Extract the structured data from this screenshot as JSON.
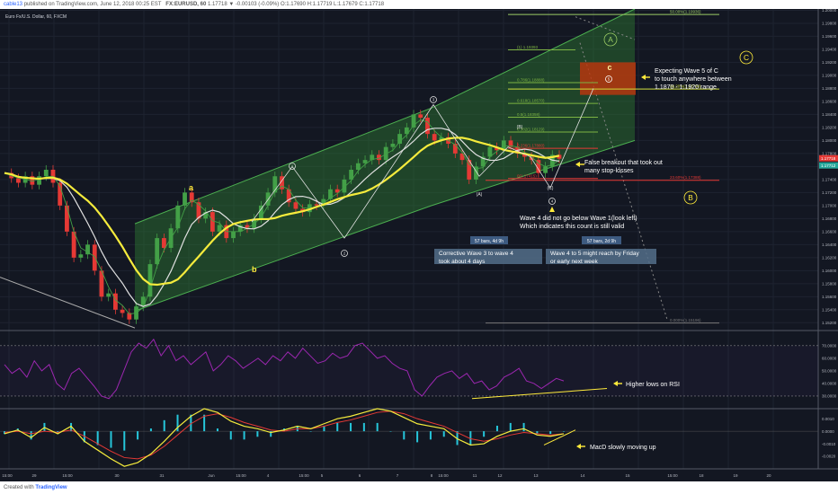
{
  "topbar": {
    "user": "cable13",
    "published": "published on TradingView.com, June 12, 2018 00:25 EST",
    "ticker": "FX:EURUSD, 60",
    "quote": "1.17718  ▼ -0.00103 (-0.09%)  O:1.17690  H:1.17719  L:1.17679  C:1.17718"
  },
  "legend": "Euro Fx/U.S. Dollar, 60, FXCM",
  "bottombar": {
    "created_with": "Created with",
    "brand": "TradingView"
  },
  "price_tag": {
    "value": "1.17718",
    "value2": "1.17712"
  },
  "colors": {
    "background": "#131722",
    "channel": "#2e7d32",
    "yellow_ma": "#f5eb3c",
    "white_ma": "#e0e0e0",
    "green_ma": "#43a047",
    "rsi": "#9c27b0",
    "macd": "#f5eb3c",
    "signal": "#e53935",
    "hist": "#26c6da",
    "annot": "#ffeb3b",
    "fib_red": "#e53935",
    "fib_green": "#7cb342"
  },
  "chart_data": [
    {
      "type": "candlestick",
      "title": "Euro Fx/U.S. Dollar, 60, FXCM",
      "ylim": [
        1.1508,
        1.2002
      ],
      "y_ticks": [
        "1.20000",
        "1.19800",
        "1.19600",
        "1.19400",
        "1.19200",
        "1.19000",
        "1.18800",
        "1.18600",
        "1.18400",
        "1.18200",
        "1.18000",
        "1.17800",
        "1.17600",
        "1.17400",
        "1.17200",
        "1.17000",
        "1.16800",
        "1.16600",
        "1.16400",
        "1.16200",
        "1.16000",
        "1.15800",
        "1.15600",
        "1.15400",
        "1.15200"
      ],
      "x_ticks": [
        "15:00",
        "29",
        "15:00",
        "30",
        "31",
        "Jun",
        "15:00",
        "4",
        "15:00",
        "5",
        "6",
        "7",
        "8",
        "15:00",
        "11",
        "12",
        "13",
        "14",
        "15",
        "15:00",
        "18",
        "19",
        "20"
      ],
      "price_path": [
        1.175,
        1.1742,
        1.1735,
        1.1745,
        1.1732,
        1.1745,
        1.1755,
        1.1735,
        1.17,
        1.166,
        1.162,
        1.1625,
        1.164,
        1.16,
        1.156,
        1.1565,
        1.154,
        1.1535,
        1.1525,
        1.1545,
        1.156,
        1.161,
        1.165,
        1.1635,
        1.1665,
        1.17,
        1.172,
        1.1705,
        1.168,
        1.169,
        1.166,
        1.167,
        1.165,
        1.166,
        1.167,
        1.1665,
        1.168,
        1.17,
        1.172,
        1.1745,
        1.1725,
        1.1705,
        1.1695,
        1.169,
        1.1702,
        1.17,
        1.171,
        1.1725,
        1.172,
        1.174,
        1.1755,
        1.1765,
        1.177,
        1.1778,
        1.177,
        1.179,
        1.1795,
        1.181,
        1.182,
        1.184,
        1.1835,
        1.181,
        1.18,
        1.1805,
        1.1795,
        1.178,
        1.177,
        1.174,
        1.176,
        1.1775,
        1.179,
        1.1785,
        1.18,
        1.179,
        1.178,
        1.1775,
        1.177,
        1.175,
        1.176,
        1.1778,
        1.1772
      ],
      "channel_upper": [
        [
          1.1672,
          150
        ],
        [
          1.185,
          480
        ],
        [
          1.2002,
          706
        ]
      ],
      "channel_lower": [
        [
          1.1538,
          150
        ],
        [
          1.17,
          480
        ],
        [
          1.18,
          706
        ]
      ],
      "fibonacci": [
        {
          "label": "50.00%(1.19936)",
          "value": 1.19936,
          "color": "green"
        },
        {
          "label": "(1) 1.19393",
          "value": 1.19393,
          "color": "green"
        },
        {
          "label": "0.786(1.18888)",
          "value": 1.18888,
          "color": "green"
        },
        {
          "label": "38.20%(1.18790)",
          "value": 1.1879,
          "color": "green"
        },
        {
          "label": "0.618(1.18570)",
          "value": 1.1857,
          "color": "green"
        },
        {
          "label": "0.5(1.18358)",
          "value": 1.18358,
          "color": "green"
        },
        {
          "label": "0.382(1.18129)",
          "value": 1.18129,
          "color": "green"
        },
        {
          "label": "0.236(1.17880)",
          "value": 1.1788,
          "color": "red"
        },
        {
          "label": "0(1.17415)",
          "value": 1.17415,
          "color": "red"
        },
        {
          "label": "23.60%(1.17388)",
          "value": 1.17388,
          "color": "red"
        },
        {
          "label": "0.000%(1.15196)",
          "value": 1.15196,
          "color": "gray"
        }
      ],
      "wave_labels": [
        "A",
        "B",
        "C",
        "a",
        "b",
        "c",
        "1",
        "2",
        "3",
        "4",
        "5",
        "(A)",
        "(B)",
        "(C)"
      ],
      "annotations": [
        "Expecting Wave 5 of C\nto touch anywhere between\n1.1870 - 1.1920 range",
        "False breakout that took out\nmany stop-losses",
        "Wave 4 did not go below Wave 1(look left)\nWhich indicates this count is still valid"
      ],
      "boxes": [
        {
          "badge": "57 bars, 4d 9h",
          "text": "Corrective Wave 3 to wave 4\ntook about 4 days"
        },
        {
          "badge": "57 bars, 2d 9h",
          "text": "Wave 4 to 5 might reach by Friday\nor early next week"
        }
      ]
    },
    {
      "type": "line",
      "name": "RSI",
      "ylim": [
        20,
        82
      ],
      "y_ticks": [
        "70.0000",
        "60.0000",
        "50.0000",
        "40.0000",
        "30.0000"
      ],
      "levels": [
        70,
        30
      ],
      "values": [
        55,
        48,
        52,
        45,
        58,
        50,
        55,
        40,
        35,
        48,
        52,
        45,
        38,
        30,
        28,
        35,
        50,
        65,
        72,
        68,
        75,
        62,
        70,
        58,
        62,
        55,
        60,
        65,
        50,
        55,
        62,
        58,
        52,
        56,
        60,
        55,
        62,
        58,
        65,
        60,
        68,
        62,
        56,
        58,
        64,
        60,
        62,
        70,
        72,
        66,
        60,
        62,
        56,
        52,
        50,
        35,
        30,
        38,
        45,
        48,
        50,
        44,
        48,
        40,
        42,
        35,
        38,
        45,
        48,
        52,
        42,
        40,
        36,
        40,
        44,
        42
      ],
      "annotation": "Higher lows on RSI"
    },
    {
      "type": "line",
      "name": "MACD",
      "ylim": [
        -0.003,
        0.0018
      ],
      "y_ticks": [
        "0.0010",
        "0.0000",
        "-0.0010",
        "-0.0020"
      ],
      "macd": [
        -0.0002,
        0.0001,
        -0.0005,
        0.0003,
        -0.0002,
        0.0004,
        -0.0008,
        -0.0015,
        -0.0022,
        -0.0028,
        -0.0025,
        -0.0018,
        -0.0008,
        0.0003,
        0.0012,
        0.0018,
        0.0015,
        0.0008,
        0.0004,
        0.0002,
        -0.0001,
        0.0001,
        0.0004,
        0.0002,
        0.0006,
        0.001,
        0.0012,
        0.0015,
        0.0018,
        0.0016,
        0.0011,
        0.0006,
        0.0004,
        0.0002,
        -0.0006,
        -0.0011,
        -0.001,
        -0.0004,
        0.0,
        0.0002,
        -0.0003,
        -0.0004,
        -0.0002
      ],
      "signal": [
        -0.0001,
        0.0,
        -0.0002,
        0.0,
        -0.0001,
        0.0001,
        -0.0004,
        -0.001,
        -0.0016,
        -0.0021,
        -0.0022,
        -0.0019,
        -0.0012,
        -0.0003,
        0.0006,
        0.0012,
        0.0014,
        0.0011,
        0.0007,
        0.0004,
        0.0001,
        0.0,
        0.0002,
        0.0002,
        0.0004,
        0.0007,
        0.0009,
        0.0012,
        0.0015,
        0.0016,
        0.0014,
        0.001,
        0.0007,
        0.0004,
        -0.0001,
        -0.0006,
        -0.0008,
        -0.0006,
        -0.0003,
        -0.0001,
        -0.0002,
        -0.0003,
        -0.0002
      ],
      "annotation": "MacD slowly moving up"
    }
  ]
}
